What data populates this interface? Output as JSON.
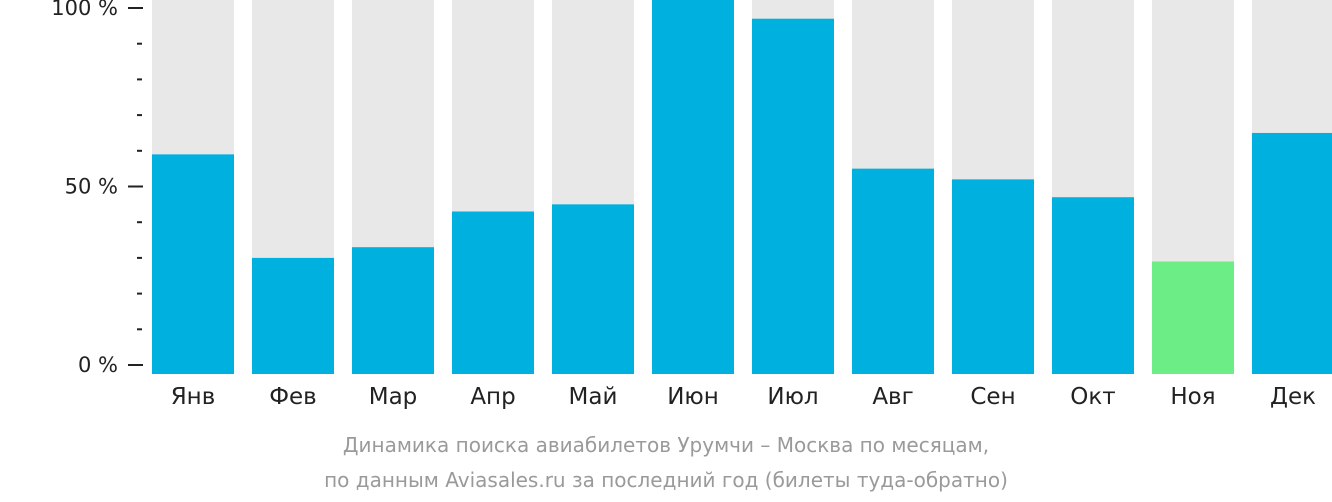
{
  "chart_data": {
    "type": "bar",
    "categories": [
      "Янв",
      "Фев",
      "Мар",
      "Апр",
      "Май",
      "Июн",
      "Июл",
      "Авг",
      "Сен",
      "Окт",
      "Ноя",
      "Дек"
    ],
    "values": [
      59,
      30,
      33,
      43,
      45,
      100,
      97,
      55,
      52,
      47,
      29,
      65
    ],
    "highlight_index": 10,
    "ylim": [
      0,
      100
    ],
    "ytick_labels": [
      "0 %",
      "50 %",
      "100 %"
    ],
    "ytick_values": [
      0,
      50,
      100
    ],
    "minor_tick_step": 10,
    "grid": false,
    "colors": {
      "bar": "#00b0de",
      "highlight": "#6ced85",
      "background_bar": "#e8e8e8",
      "axis": "#222222"
    }
  },
  "caption": {
    "line1": "Динамика поиска авиабилетов Урумчи – Москва по месяцам,",
    "line2": "по данным Aviasales.ru за последний год (билеты туда-обратно)"
  }
}
